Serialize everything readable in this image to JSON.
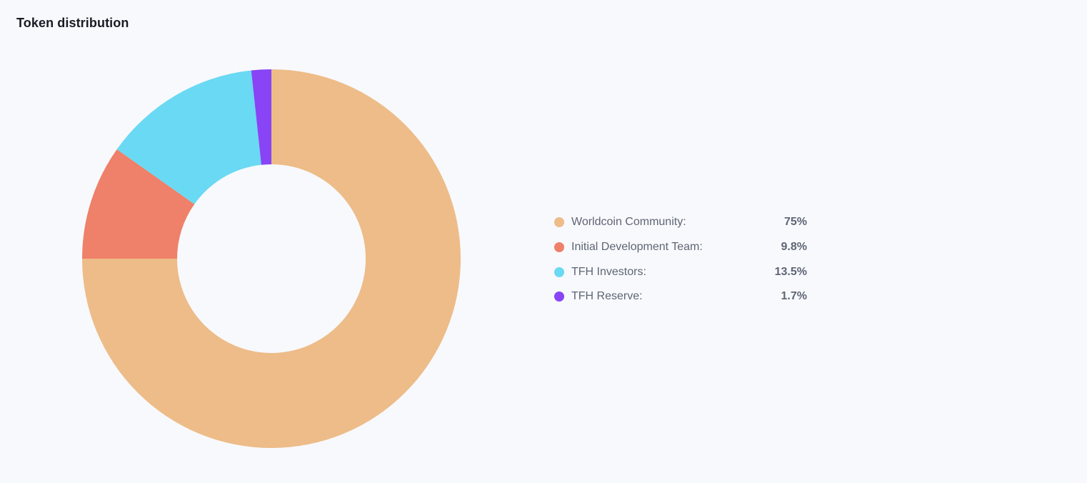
{
  "card": {
    "title": "Token distribution"
  },
  "chart_data": {
    "type": "pie",
    "variant": "donut",
    "title": "Token distribution",
    "legend_position": "right",
    "slices": [
      {
        "label": "Worldcoin Community:",
        "value": 75,
        "display": "75%",
        "color": "#edbc88"
      },
      {
        "label": "Initial Development Team:",
        "value": 9.8,
        "display": "9.8%",
        "color": "#ef8069"
      },
      {
        "label": "TFH Investors:",
        "value": 13.5,
        "display": "13.5%",
        "color": "#6ad9f3"
      },
      {
        "label": "TFH Reserve:",
        "value": 1.7,
        "display": "1.7%",
        "color": "#8844f5"
      }
    ]
  }
}
